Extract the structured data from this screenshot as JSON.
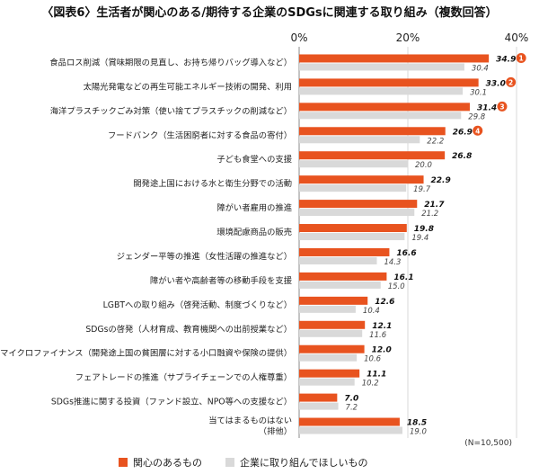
{
  "chart_data": {
    "type": "bar",
    "orientation": "horizontal",
    "title": "〈図表6〉生活者が関心のある/期待する企業のSDGsに関連する取り組み（複数回答）",
    "xlim": [
      0,
      40
    ],
    "x_ticks": [
      "0%",
      "20%",
      "40%"
    ],
    "grid": true,
    "legend_position": "bottom",
    "categories": [
      [
        "食品ロス削減（賞味期限の見直し、お持ち帰りバッグ導入など）"
      ],
      [
        "太陽光発電などの再生可能エネルギー技術の開発、利用"
      ],
      [
        "海洋プラスチックごみ対策（使い捨てプラスチックの削減など）"
      ],
      [
        "フードバンク（生活困窮者に対する食品の寄付）"
      ],
      [
        "子ども食堂への支援"
      ],
      [
        "開発途上国における水と衛生分野での活動"
      ],
      [
        "障がい者雇用の推進"
      ],
      [
        "環境配慮商品の販売"
      ],
      [
        "ジェンダー平等の推進（女性活躍の推進など）"
      ],
      [
        "障がい者や高齢者等の移動手段を支援"
      ],
      [
        "LGBTへの取り組み（啓発活動、制度づくりなど）"
      ],
      [
        "SDGsの啓発（人材育成、教育機関への出前授業など）"
      ],
      [
        "マイクロファイナンス（開発途上国の貧困層に対する小口融資や保険の提供）"
      ],
      [
        "フェアトレードの推進（サプライチェーンでの人権尊重）"
      ],
      [
        "SDGs推進に関する投資（ファンド設立、NPO等への支援など）"
      ],
      [
        "当てはまるものはない",
        "（排他）"
      ]
    ],
    "series": [
      {
        "name": "関心のあるもの",
        "color": "#e8531f",
        "values": [
          34.9,
          33.0,
          31.4,
          26.9,
          26.8,
          22.9,
          21.7,
          19.8,
          16.6,
          16.1,
          12.6,
          12.1,
          12.0,
          11.1,
          7.0,
          18.5
        ],
        "labels": [
          "34.9",
          "33.0",
          "31.4",
          "26.9",
          "26.8",
          "22.9",
          "21.7",
          "19.8",
          "16.6",
          "16.1",
          "12.6",
          "12.1",
          "12.0",
          "11.1",
          "7.0",
          "18.5"
        ]
      },
      {
        "name": "企業に取り組んでほしいもの",
        "color": "#d9d9d9",
        "values": [
          30.4,
          30.1,
          29.8,
          22.2,
          20.0,
          19.7,
          21.2,
          19.4,
          14.3,
          15.0,
          10.4,
          11.6,
          10.6,
          10.2,
          7.2,
          19.0
        ],
        "labels": [
          "30.4",
          "30.1",
          "29.8",
          "22.2",
          "20.0",
          "19.7",
          "21.2",
          "19.4",
          "14.3",
          "15.0",
          "10.4",
          "11.6",
          "10.6",
          "10.2",
          "7.2",
          "19.0"
        ]
      }
    ],
    "rank_badges": [
      "1",
      "2",
      "3",
      "4"
    ],
    "rank_badge_color": "#e8531f",
    "note": "(N=10,500)"
  }
}
